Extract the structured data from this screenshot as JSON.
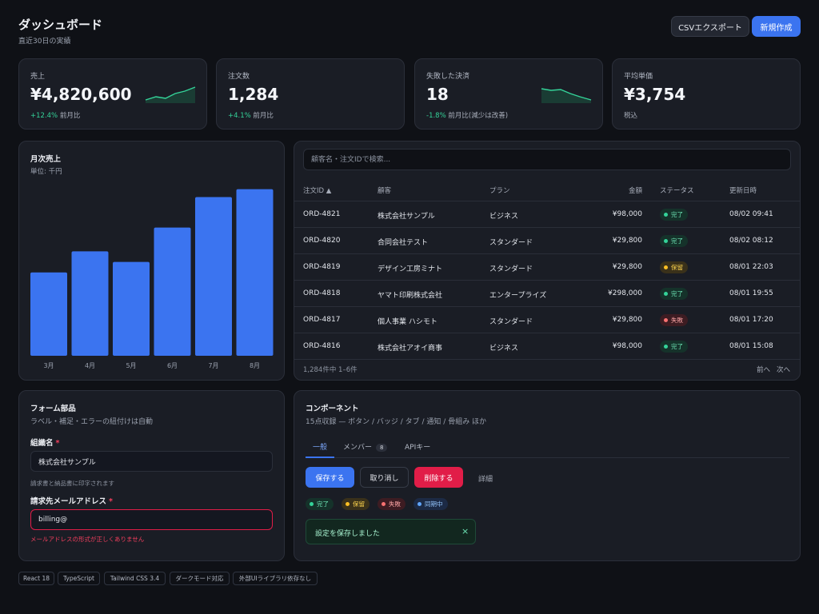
{
  "header": {
    "title": "ダッシュボード",
    "subtitle": "直近30日の実績",
    "csv_button": "CSVエクスポート",
    "new_button": "新規作成"
  },
  "kpis": [
    {
      "label": "売上",
      "value": "¥4,820,600",
      "delta": "+12.4%",
      "note": "前月比",
      "trend": "up"
    },
    {
      "label": "注文数",
      "value": "1,284",
      "delta": "+4.1%",
      "note": "前月比"
    },
    {
      "label": "失敗した決済",
      "value": "18",
      "delta": "-1.8%",
      "note": "前月比(減少は改善)",
      "trend": "down"
    },
    {
      "label": "平均単価",
      "value": "¥3,754",
      "note": "税込"
    }
  ],
  "chart_data": {
    "type": "bar",
    "title": "月次売上",
    "subtitle": "単位: 千円",
    "categories": [
      "3月",
      "4月",
      "5月",
      "6月",
      "7月",
      "8月"
    ],
    "values": [
      3150,
      3950,
      3550,
      4850,
      6000,
      6300
    ],
    "ylim": [
      0,
      6500
    ],
    "color": "#3b74f0",
    "grid": false
  },
  "orders": {
    "search_placeholder": "顧客名・注文IDで検索...",
    "columns": {
      "id": "注文ID ▲",
      "customer": "顧客",
      "plan": "プラン",
      "amount": "金額",
      "status": "ステータス",
      "updated": "更新日時"
    },
    "rows": [
      {
        "id": "ORD-4821",
        "customer": "株式会社サンプル",
        "plan": "ビジネス",
        "amount": "¥98,000",
        "status": "完了",
        "status_type": "green",
        "updated": "08/02 09:41"
      },
      {
        "id": "ORD-4820",
        "customer": "合同会社テスト",
        "plan": "スタンダード",
        "amount": "¥29,800",
        "status": "完了",
        "status_type": "green",
        "updated": "08/02 08:12"
      },
      {
        "id": "ORD-4819",
        "customer": "デザイン工房ミナト",
        "plan": "スタンダード",
        "amount": "¥29,800",
        "status": "保留",
        "status_type": "yellow",
        "updated": "08/01 22:03"
      },
      {
        "id": "ORD-4818",
        "customer": "ヤマト印刷株式会社",
        "plan": "エンタープライズ",
        "amount": "¥298,000",
        "status": "完了",
        "status_type": "green",
        "updated": "08/01 19:55"
      },
      {
        "id": "ORD-4817",
        "customer": "個人事業 ハシモト",
        "plan": "スタンダード",
        "amount": "¥29,800",
        "status": "失敗",
        "status_type": "red",
        "updated": "08/01 17:20"
      },
      {
        "id": "ORD-4816",
        "customer": "株式会社アオイ商事",
        "plan": "ビジネス",
        "amount": "¥98,000",
        "status": "完了",
        "status_type": "green",
        "updated": "08/01 15:08"
      }
    ],
    "count_text": "1,284件中 1–6件",
    "prev": "前へ",
    "next": "次へ"
  },
  "form": {
    "title": "フォーム部品",
    "subtitle": "ラベル・補足・エラーの紐付けは自動",
    "org_label": "組織名",
    "org_value": "株式会社サンプル",
    "org_hint": "請求書と納品書に印字されます",
    "email_label": "請求先メールアドレス",
    "email_value": "billing@",
    "email_error": "メールアドレスの形式が正しくありません",
    "required_mark": "*"
  },
  "components": {
    "title": "コンポーネント",
    "subtitle": "15点収録 — ボタン / バッジ / タブ / 通知 / 骨組み ほか",
    "tabs": [
      {
        "label": "一般",
        "active": true
      },
      {
        "label": "メンバー",
        "count": "8"
      },
      {
        "label": "APIキー"
      }
    ],
    "buttons": {
      "save": "保存する",
      "cancel": "取り消し",
      "delete": "削除する",
      "detail": "詳細"
    },
    "badges": [
      {
        "label": "完了",
        "type": "green"
      },
      {
        "label": "保留",
        "type": "yellow"
      },
      {
        "label": "失敗",
        "type": "red"
      },
      {
        "label": "同期中",
        "type": "blue"
      }
    ],
    "toast": "設定を保存しました",
    "toast_close": "×"
  },
  "tags": [
    "React 18",
    "TypeScript",
    "Tailwind CSS 3.4",
    "ダークモード対応",
    "外部UIライブラリ依存なし"
  ],
  "colors": {
    "accent": "#3b74f0",
    "positive": "#34d399",
    "danger": "#e11d48",
    "background": "#0f1116"
  }
}
